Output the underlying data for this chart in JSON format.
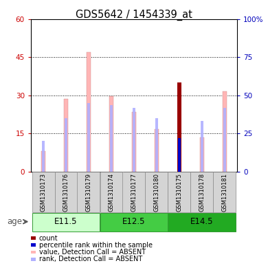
{
  "title": "GDS5642 / 1454339_at",
  "samples": [
    "GSM1310173",
    "GSM1310176",
    "GSM1310179",
    "GSM1310174",
    "GSM1310177",
    "GSM1310180",
    "GSM1310175",
    "GSM1310178",
    "GSM1310181"
  ],
  "age_groups": [
    {
      "label": "E11.5",
      "indices": [
        0,
        1,
        2
      ]
    },
    {
      "label": "E12.5",
      "indices": [
        3,
        4,
        5
      ]
    },
    {
      "label": "E14.5",
      "indices": [
        6,
        7,
        8
      ]
    }
  ],
  "value_bars": [
    8.0,
    28.5,
    47.0,
    29.5,
    23.5,
    16.5,
    0.0,
    13.5,
    31.5
  ],
  "rank_bars": [
    12.0,
    21.0,
    27.0,
    26.0,
    25.0,
    21.0,
    0.0,
    20.0,
    25.0
  ],
  "count_bar_idx": 6,
  "count_bar_val": 35.0,
  "percentile_bar_val": 22.0,
  "value_color": "#ffb6b6",
  "rank_color": "#b0b0ff",
  "count_color": "#990000",
  "percentile_color": "#0000cc",
  "left_ylim": [
    0,
    60
  ],
  "right_ylim": [
    0,
    100
  ],
  "left_yticks": [
    0,
    15,
    30,
    45,
    60
  ],
  "right_yticks": [
    0,
    25,
    50,
    75,
    100
  ],
  "right_yticklabels": [
    "0",
    "25",
    "50",
    "75",
    "100%"
  ],
  "left_tick_color": "#cc0000",
  "right_tick_color": "#0000bb",
  "bar_width": 0.18,
  "rank_bar_width": 0.1,
  "legend_items": [
    {
      "label": "count",
      "color": "#990000"
    },
    {
      "label": "percentile rank within the sample",
      "color": "#0000cc"
    },
    {
      "label": "value, Detection Call = ABSENT",
      "color": "#ffb6b6"
    },
    {
      "label": "rank, Detection Call = ABSENT",
      "color": "#b0b0ff"
    }
  ],
  "age_label": "age",
  "age_colors": [
    "#ccffcc",
    "#44cc44",
    "#22aa22"
  ],
  "age_border_colors": [
    "#88ee88",
    "#22aa22",
    "#118811"
  ],
  "cell_color": "#d4d4d4",
  "cell_border": "#888888"
}
